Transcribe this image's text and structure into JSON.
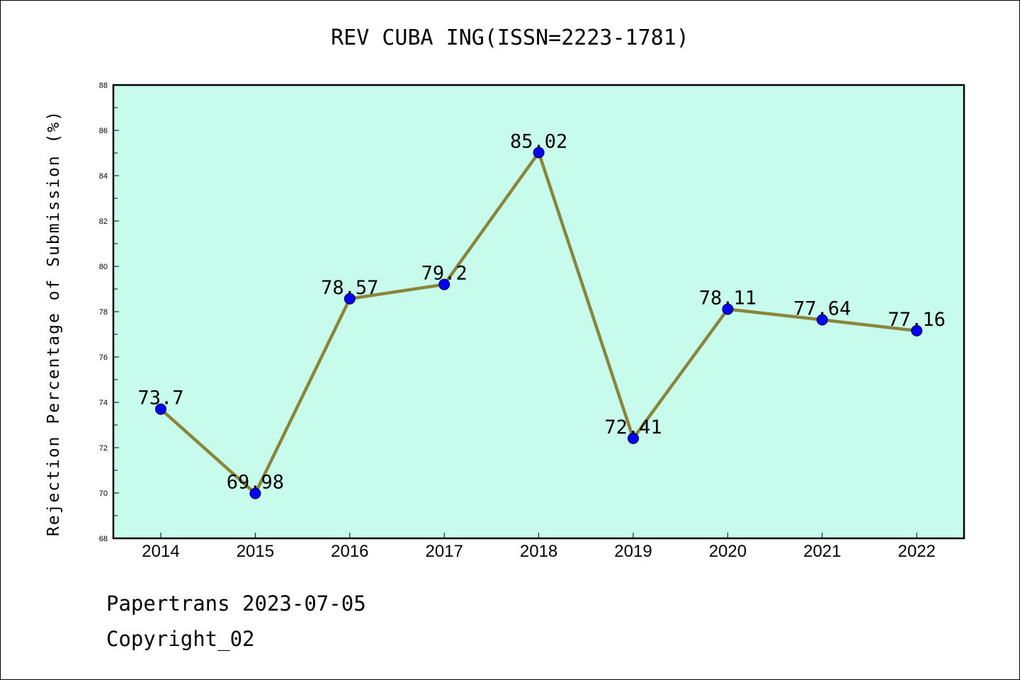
{
  "chart_data": {
    "type": "line",
    "title": "REV CUBA ING(ISSN=2223-1781)",
    "xlabel": "",
    "ylabel": "Rejection Percentage of Submission (%)",
    "categories": [
      "2014",
      "2015",
      "2016",
      "2017",
      "2018",
      "2019",
      "2020",
      "2021",
      "2022"
    ],
    "values": [
      73.7,
      69.98,
      78.57,
      79.2,
      85.02,
      72.41,
      78.11,
      77.64,
      77.16
    ],
    "data_labels": [
      "73.7",
      "69.98",
      "78.57",
      "79.2",
      "85.02",
      "72.41",
      "78.11",
      "77.64",
      "77.16"
    ],
    "ylim": [
      68,
      88
    ],
    "yticks": [
      68,
      70,
      72,
      74,
      76,
      78,
      80,
      82,
      84,
      86,
      88
    ],
    "grid": false,
    "colors": {
      "plot_background": "#c7fcec",
      "line": "#8b8539",
      "marker": "#0000ff"
    }
  },
  "footer": {
    "line1": "Papertrans 2023-07-05",
    "line2": "Copyright_02"
  }
}
